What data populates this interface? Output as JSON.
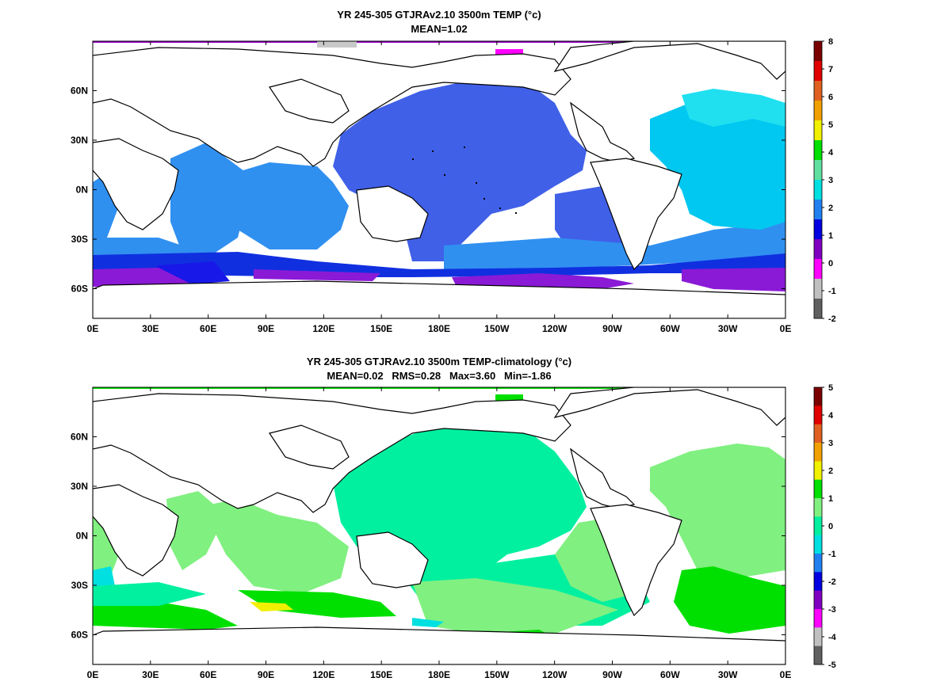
{
  "chart_data": [
    {
      "type": "heatmap",
      "title": "YR 245-305 GTJRAv2.10 3500m TEMP (°c)",
      "subtitle": "MEAN=1.02",
      "x_ticks": [
        "0E",
        "30E",
        "60E",
        "90E",
        "120E",
        "150E",
        "180E",
        "150W",
        "120W",
        "90W",
        "60W",
        "30W",
        "0E"
      ],
      "y_ticks": [
        "60N",
        "30N",
        "0N",
        "30S",
        "60S"
      ],
      "xlim": [
        0,
        360
      ],
      "ylim": [
        -78,
        90
      ],
      "colorbar": {
        "ticks": [
          "8",
          "7",
          "6",
          "5",
          "4",
          "3",
          "2",
          "1",
          "0",
          "-1",
          "-2"
        ],
        "colors": [
          "#7a0000",
          "#e00000",
          "#e06020",
          "#f0a000",
          "#f0f000",
          "#00e000",
          "#60e0a0",
          "#00e0e0",
          "#2080f0",
          "#0000e0",
          "#8000c0",
          "#ff00ff",
          "#c0c0c0",
          "#606060"
        ]
      },
      "mean": 1.02
    },
    {
      "type": "heatmap",
      "title": "YR 245-305 GTJRAv2.10 3500m TEMP-climatology (°c)",
      "subtitle": "MEAN=0.02   RMS=0.28   Max=3.60   Min=-1.86",
      "x_ticks": [
        "0E",
        "30E",
        "60E",
        "90E",
        "120E",
        "150E",
        "180E",
        "150W",
        "120W",
        "90W",
        "60W",
        "30W",
        "0E"
      ],
      "y_ticks": [
        "60N",
        "30N",
        "0N",
        "30S",
        "60S"
      ],
      "xlim": [
        0,
        360
      ],
      "ylim": [
        -78,
        90
      ],
      "colorbar": {
        "ticks": [
          "5",
          "4",
          "3",
          "2",
          "1",
          "0",
          "-1",
          "-2",
          "-3",
          "-4",
          "-5"
        ],
        "colors": [
          "#7a0000",
          "#e00000",
          "#e06020",
          "#f0a000",
          "#f0f000",
          "#00e000",
          "#80f080",
          "#00f0a0",
          "#00e0e0",
          "#2080f0",
          "#0000e0",
          "#8000c0",
          "#ff00ff",
          "#c0c0c0",
          "#606060"
        ]
      },
      "mean": 0.02,
      "rms": 0.28,
      "max": 3.6,
      "min": -1.86
    }
  ]
}
